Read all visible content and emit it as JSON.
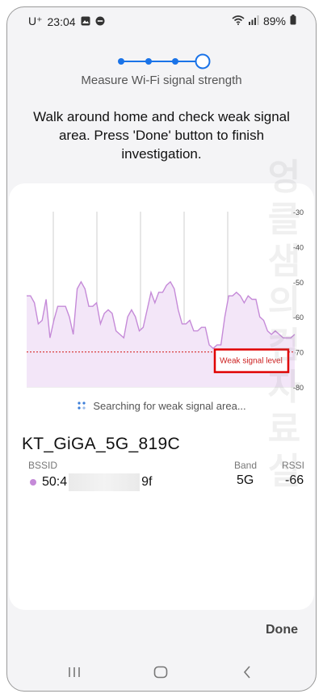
{
  "status_bar": {
    "carrier": "U⁺",
    "time": "23:04",
    "battery": "89%",
    "icons_left": [
      "gallery-icon",
      "do-not-disturb-icon"
    ],
    "icons_right": [
      "wifi-icon",
      "signal-icon",
      "battery-icon"
    ]
  },
  "stepper": {
    "total_steps": 4,
    "current_step": 4
  },
  "header": {
    "subtitle": "Measure Wi-Fi signal strength",
    "instructions": "Walk around home and check weak signal area. Press 'Done' button to finish investigation."
  },
  "chart_data": {
    "type": "area",
    "y_ticks": [
      "-30",
      "-40",
      "-50",
      "-60",
      "-70",
      "-80"
    ],
    "ylim": [
      -80,
      -30
    ],
    "threshold": {
      "value": -70,
      "label": "Weak signal level",
      "color": "#d94040"
    },
    "line_color": "#c58ad8",
    "fill_color": "#f3e6f8",
    "series": [
      {
        "values": [
          -54,
          -54,
          -56,
          -62,
          -61,
          -55,
          -66,
          -61,
          -57,
          -57,
          -57,
          -60,
          -65,
          -52,
          -50,
          -52,
          -57,
          -57,
          -56,
          -62,
          -59,
          -58,
          -59,
          -64,
          -65,
          -66,
          -60,
          -58,
          -60,
          -64,
          -63,
          -58,
          -53,
          -56,
          -53,
          -53,
          -51,
          -50,
          -52,
          -58,
          -62,
          -62,
          -61,
          -64,
          -64,
          -63,
          -63,
          -68,
          -69,
          -68,
          -68,
          -60,
          -54,
          -54,
          -53,
          -54,
          -56,
          -54,
          -55,
          -55,
          -60,
          -61,
          -64,
          -65,
          -64,
          -65,
          -66,
          -66,
          -66,
          -65
        ]
      }
    ]
  },
  "scan_status": "Searching for weak signal area...",
  "network": {
    "ssid": "KT_GiGA_5G_819C",
    "labels": {
      "bssid": "BSSID",
      "band": "Band",
      "rssi": "RSSI"
    },
    "bssid_start": "50:4",
    "bssid_end": "9f",
    "band": "5G",
    "rssi": "-66",
    "dot_color": "#c58ad8"
  },
  "actions": {
    "done_label": "Done"
  },
  "watermark": "엉클샘의 컴자료실",
  "nav_bar": {
    "items": [
      "recent-apps",
      "home",
      "back"
    ]
  }
}
